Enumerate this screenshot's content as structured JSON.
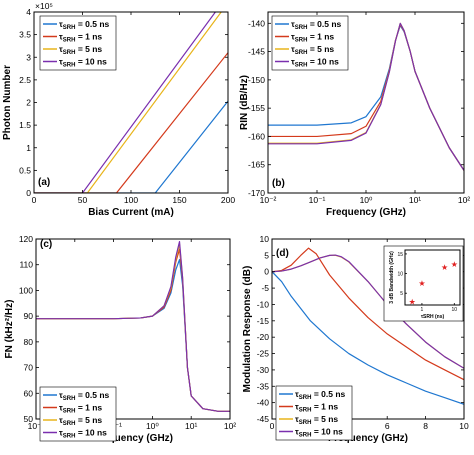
{
  "colors": [
    "#1f77d0",
    "#d43a1c",
    "#e8b41a",
    "#7a2fae"
  ],
  "legend_prefix": "τ",
  "legend_sub": "SRH",
  "legend_entries": [
    " = 0.5 ns",
    " = 1 ns",
    " = 5 ns",
    " = 10 ns"
  ],
  "chart_data": [
    {
      "panel": "(a)",
      "type": "line",
      "xlabel": "Bias Current (mA)",
      "ylabel": "Photon Number",
      "exponent_label": "×10⁵",
      "xlim": [
        0,
        200
      ],
      "ylim": [
        0,
        4
      ],
      "xticks": [
        0,
        50,
        100,
        150,
        200
      ],
      "yticks": [
        0,
        0.5,
        1,
        1.5,
        2,
        2.5,
        3,
        3.5,
        4
      ],
      "yticklabels": [
        "0",
        "0.5",
        "1",
        "1.5",
        "2",
        "2.5",
        "3",
        "3.5",
        "4"
      ],
      "series": [
        {
          "name": "τSRH = 0.5 ns",
          "x": [
            0,
            125,
            200
          ],
          "y": [
            0,
            0,
            2.03
          ]
        },
        {
          "name": "τSRH = 1 ns",
          "x": [
            0,
            85,
            200
          ],
          "y": [
            0,
            0,
            3.1
          ]
        },
        {
          "name": "τSRH = 5 ns",
          "x": [
            0,
            55,
            193
          ],
          "y": [
            0,
            0,
            4.0
          ]
        },
        {
          "name": "τSRH = 10 ns",
          "x": [
            0,
            50,
            187
          ],
          "y": [
            0,
            0,
            4.0
          ]
        }
      ]
    },
    {
      "panel": "(b)",
      "type": "line",
      "xscale": "log",
      "xlabel": "Frequency (GHz)",
      "ylabel": "RIN (dB/Hz)",
      "xlim": [
        0.01,
        100
      ],
      "ylim": [
        -170,
        -138
      ],
      "xticks": [
        0.01,
        0.1,
        1,
        10,
        100
      ],
      "xticklabels": [
        "10⁻²",
        "10⁻¹",
        "10⁰",
        "10¹",
        "10²"
      ],
      "yticks": [
        -170,
        -165,
        -160,
        -155,
        -150,
        -145,
        -140
      ],
      "yticklabels": [
        "-170",
        "-165",
        "-160",
        "-155",
        "-150",
        "-145",
        "-140"
      ],
      "series": [
        {
          "name": "τSRH = 0.5 ns",
          "x": [
            0.01,
            0.1,
            0.5,
            1,
            2,
            3,
            4,
            5,
            6,
            8,
            10,
            20,
            50,
            100
          ],
          "y": [
            -158,
            -158,
            -157.6,
            -156.5,
            -153,
            -148,
            -143,
            -140.4,
            -141.5,
            -145,
            -148.5,
            -155,
            -162,
            -166
          ]
        },
        {
          "name": "τSRH = 1 ns",
          "x": [
            0.01,
            0.1,
            0.5,
            1,
            2,
            3,
            4,
            5,
            6,
            8,
            10,
            20,
            50,
            100
          ],
          "y": [
            -160,
            -160,
            -159.5,
            -158.2,
            -153.8,
            -148.3,
            -143,
            -140.2,
            -141.4,
            -145,
            -148.5,
            -155,
            -162,
            -166
          ]
        },
        {
          "name": "τSRH = 5 ns",
          "x": [
            0.01,
            0.1,
            0.5,
            1,
            2,
            3,
            4,
            5,
            6,
            8,
            10,
            20,
            50,
            100
          ],
          "y": [
            -161.2,
            -161.2,
            -160.6,
            -159.3,
            -154.3,
            -148.5,
            -143.1,
            -140,
            -141.3,
            -145,
            -148.5,
            -155,
            -162,
            -166
          ]
        },
        {
          "name": "τSRH = 10 ns",
          "x": [
            0.01,
            0.1,
            0.5,
            1,
            2,
            3,
            4,
            5,
            6,
            8,
            10,
            20,
            50,
            100
          ],
          "y": [
            -161.3,
            -161.3,
            -160.7,
            -159.4,
            -154.4,
            -148.6,
            -143.1,
            -140,
            -141.3,
            -145,
            -148.5,
            -155,
            -162,
            -166
          ]
        }
      ]
    },
    {
      "panel": "(c)",
      "type": "line",
      "xscale": "log",
      "xlabel": "Frequency (GHz)",
      "ylabel": "FN (kHz²/Hz)",
      "xlim": [
        0.001,
        100
      ],
      "ylim": [
        50,
        120
      ],
      "xticks": [
        0.001,
        0.01,
        0.1,
        1,
        10,
        100
      ],
      "xticklabels": [
        "10⁻³",
        "10⁻²",
        "10⁻¹",
        "10⁰",
        "10¹",
        "10²"
      ],
      "yticks": [
        50,
        60,
        70,
        80,
        90,
        100,
        110,
        120
      ],
      "yticklabels": [
        "50",
        "60",
        "70",
        "80",
        "90",
        "100",
        "110",
        "120"
      ],
      "series": [
        {
          "name": "τSRH = 0.5 ns",
          "x": [
            0.001,
            0.01,
            0.1,
            0.5,
            1,
            2,
            3,
            4,
            5,
            6,
            7,
            8,
            10,
            20,
            50,
            100
          ],
          "y": [
            89,
            89,
            89,
            89.3,
            90,
            93,
            99,
            108,
            112,
            102,
            85,
            70,
            59,
            54,
            53,
            53
          ]
        },
        {
          "name": "τSRH = 1 ns",
          "x": [
            0.001,
            0.01,
            0.1,
            0.5,
            1,
            2,
            3,
            4,
            5,
            6,
            7,
            8,
            10,
            20,
            50,
            100
          ],
          "y": [
            89,
            89,
            89,
            89.3,
            90,
            93.5,
            100,
            111,
            116,
            104,
            86,
            70,
            59,
            54,
            53,
            53
          ]
        },
        {
          "name": "τSRH = 5 ns",
          "x": [
            0.001,
            0.01,
            0.1,
            0.5,
            1,
            2,
            3,
            4,
            5,
            6,
            7,
            8,
            10,
            20,
            50,
            100
          ],
          "y": [
            89,
            89,
            89,
            89.3,
            90,
            94,
            101,
            112,
            118,
            105,
            86,
            70,
            59,
            54,
            53,
            53
          ]
        },
        {
          "name": "τSRH = 10 ns",
          "x": [
            0.001,
            0.01,
            0.1,
            0.5,
            1,
            2,
            3,
            4,
            5,
            6,
            7,
            8,
            10,
            20,
            50,
            100
          ],
          "y": [
            89,
            89,
            89,
            89.3,
            90,
            94,
            101.5,
            113,
            119,
            105,
            86,
            70,
            59,
            54,
            53,
            53
          ]
        }
      ]
    },
    {
      "panel": "(d)",
      "type": "line",
      "xlabel": "Frequency (GHz)",
      "ylabel": "Modulation Response (dB)",
      "xlim": [
        0,
        10
      ],
      "ylim": [
        -45,
        10
      ],
      "xticks": [
        0,
        2,
        4,
        6,
        8,
        10
      ],
      "yticks": [
        -45,
        -40,
        -35,
        -30,
        -25,
        -20,
        -15,
        -10,
        -5,
        0,
        5,
        10
      ],
      "yticklabels": [
        "-45",
        "-40",
        "-35",
        "-30",
        "-25",
        "-20",
        "-15",
        "-10",
        "-5",
        "0",
        "5",
        "10"
      ],
      "series": [
        {
          "name": "τSRH = 0.5 ns",
          "x": [
            0,
            0.5,
            1,
            2,
            3,
            4,
            5,
            6,
            7,
            8,
            9,
            10
          ],
          "y": [
            0,
            -3,
            -7.5,
            -15,
            -20.5,
            -25,
            -28.5,
            -31.5,
            -34,
            -36.5,
            -38.5,
            -40.5
          ]
        },
        {
          "name": "τSRH = 1 ns",
          "x": [
            0,
            0.5,
            1,
            1.5,
            1.9,
            2.3,
            3,
            4,
            5,
            6,
            7,
            8,
            9,
            10
          ],
          "y": [
            0,
            0.4,
            2,
            5,
            7.2,
            5.5,
            -1,
            -8,
            -14,
            -19,
            -23,
            -27,
            -30,
            -33
          ]
        },
        {
          "name": "τSRH = 5 ns",
          "x": [
            0,
            0.5,
            1,
            1.5,
            2,
            2.5,
            3,
            3.3,
            3.6,
            4,
            5,
            6,
            7,
            8,
            9,
            10
          ],
          "y": [
            0,
            0.2,
            0.8,
            1.8,
            3,
            4.2,
            5,
            5,
            4.5,
            3,
            -3,
            -10,
            -16,
            -21.5,
            -26,
            -29.5
          ]
        },
        {
          "name": "τSRH = 10 ns",
          "x": [
            0,
            0.5,
            1,
            1.5,
            2,
            2.5,
            3,
            3.3,
            3.6,
            4,
            5,
            6,
            7,
            8,
            9,
            10
          ],
          "y": [
            0,
            0.2,
            0.8,
            1.8,
            3,
            4.2,
            5,
            5.1,
            4.6,
            3.1,
            -3,
            -10,
            -16,
            -21.5,
            -26,
            -29.5
          ]
        }
      ],
      "inset": {
        "type": "scatter",
        "xscale": "log",
        "xlabel": "τSRH (ns)",
        "ylabel": "3 dB Bandwidth (GHz)",
        "xlim": [
          0.3,
          15
        ],
        "ylim": [
          2,
          16
        ],
        "xticks": [
          1,
          10
        ],
        "xticklabels": [
          "1",
          "10"
        ],
        "yticks": [
          5,
          10,
          15
        ],
        "yticklabels": [
          "5",
          "10",
          "15"
        ],
        "x": [
          0.5,
          1,
          5,
          10
        ],
        "y": [
          2.8,
          7.5,
          11.5,
          12.3
        ],
        "color": "#e02020"
      }
    }
  ]
}
